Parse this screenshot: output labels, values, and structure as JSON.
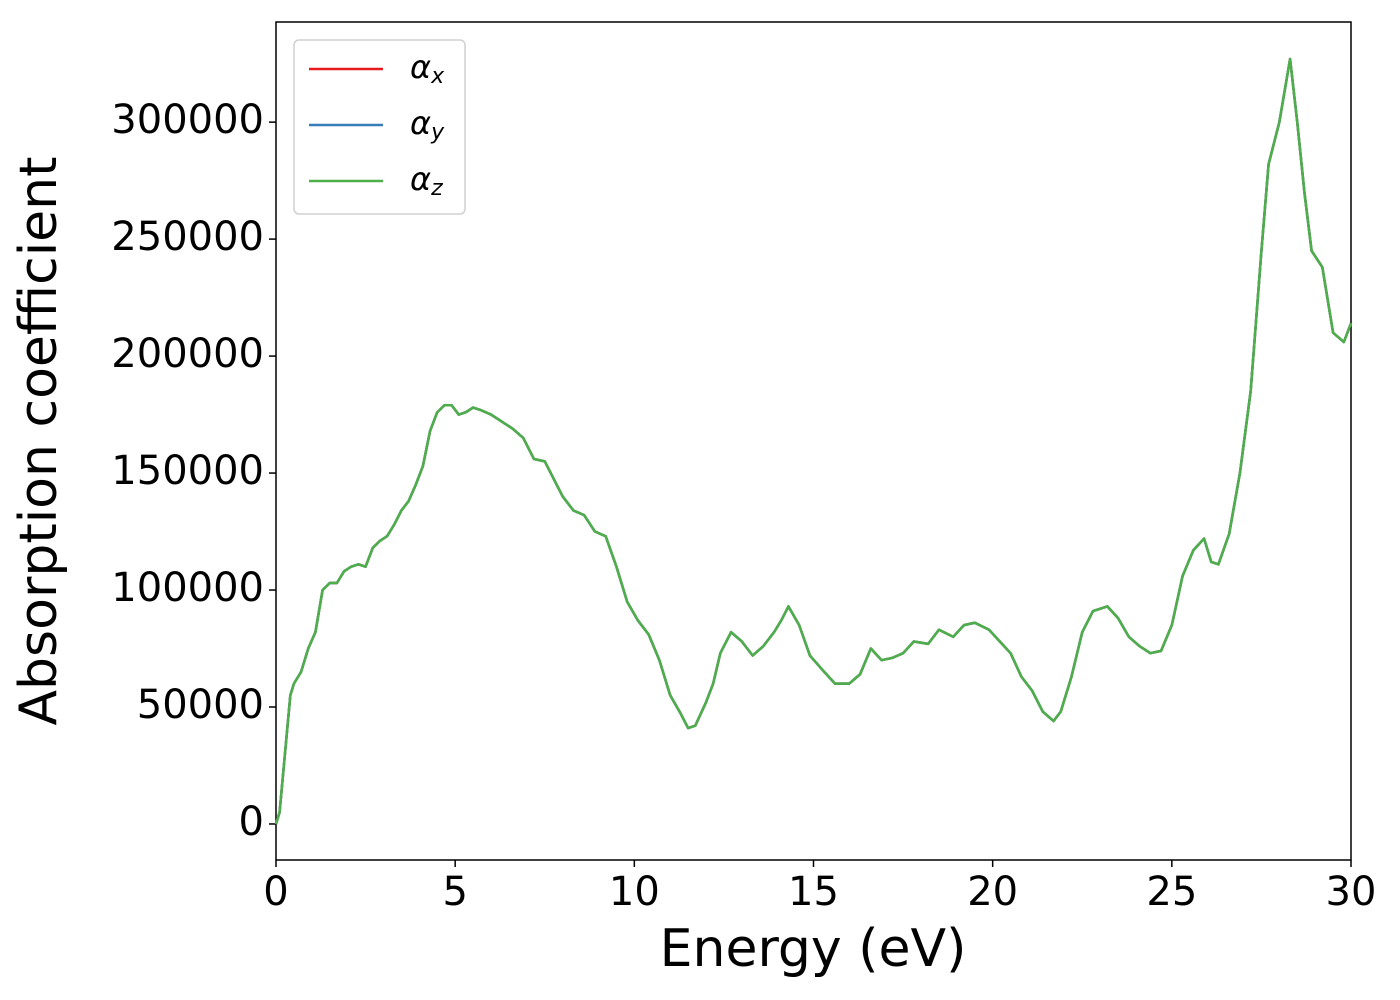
{
  "chart_data": {
    "type": "line",
    "xlabel": "Energy (eV)",
    "ylabel": "Absorption coefficient",
    "x": [
      0,
      0.1,
      0.25,
      0.4,
      0.5,
      0.7,
      0.9,
      1.1,
      1.3,
      1.5,
      1.7,
      1.9,
      2.1,
      2.3,
      2.5,
      2.7,
      2.9,
      3.1,
      3.3,
      3.5,
      3.7,
      3.9,
      4.1,
      4.3,
      4.5,
      4.7,
      4.9,
      5.1,
      5.3,
      5.5,
      5.7,
      6.0,
      6.3,
      6.6,
      6.9,
      7.2,
      7.5,
      7.8,
      8.0,
      8.3,
      8.6,
      8.9,
      9.2,
      9.5,
      9.8,
      10.1,
      10.4,
      10.7,
      11.0,
      11.3,
      11.5,
      11.7,
      12.0,
      12.2,
      12.4,
      12.7,
      13.0,
      13.3,
      13.6,
      13.9,
      14.1,
      14.3,
      14.6,
      14.9,
      15.3,
      15.6,
      16.0,
      16.3,
      16.6,
      16.9,
      17.2,
      17.5,
      17.8,
      18.2,
      18.5,
      18.9,
      19.2,
      19.5,
      19.9,
      20.2,
      20.5,
      20.8,
      21.1,
      21.4,
      21.7,
      21.9,
      22.2,
      22.5,
      22.8,
      23.2,
      23.5,
      23.8,
      24.1,
      24.4,
      24.7,
      25.0,
      25.3,
      25.6,
      25.9,
      26.1,
      26.3,
      26.6,
      26.9,
      27.2,
      27.5,
      27.7,
      28.0,
      28.3,
      28.5,
      28.7,
      28.9,
      29.2,
      29.5,
      29.8,
      30.0
    ],
    "series": [
      {
        "name": "αx",
        "color": "#e41a1c",
        "values": [
          0,
          5000,
          30000,
          55000,
          60000,
          65000,
          75000,
          82000,
          100000,
          103000,
          103000,
          108000,
          110000,
          111000,
          110000,
          118000,
          121000,
          123000,
          128000,
          134000,
          138000,
          145000,
          153000,
          168000,
          176000,
          179000,
          179000,
          175000,
          176000,
          178000,
          177000,
          175000,
          172000,
          169000,
          165000,
          156000,
          155000,
          146000,
          140000,
          134000,
          132000,
          125000,
          123000,
          110000,
          95000,
          87000,
          81000,
          70000,
          55000,
          47000,
          41000,
          42000,
          52000,
          60000,
          73000,
          82000,
          78000,
          72000,
          76000,
          82000,
          87000,
          93000,
          85000,
          72000,
          65000,
          60000,
          60000,
          64000,
          75000,
          70000,
          71000,
          73000,
          78000,
          77000,
          83000,
          80000,
          85000,
          86000,
          83000,
          78000,
          73000,
          63000,
          57000,
          48000,
          44000,
          48000,
          63000,
          82000,
          91000,
          93000,
          88000,
          80000,
          76000,
          73000,
          74000,
          85000,
          106000,
          117000,
          122000,
          112000,
          111000,
          124000,
          150000,
          185000,
          245000,
          282000,
          300000,
          327000,
          300000,
          270000,
          245000,
          238000,
          210000,
          206000,
          214000
        ]
      },
      {
        "name": "αy",
        "color": "#377eb8",
        "values": [
          0,
          5000,
          30000,
          55000,
          60000,
          65000,
          75000,
          82000,
          100000,
          103000,
          103000,
          108000,
          110000,
          111000,
          110000,
          118000,
          121000,
          123000,
          128000,
          134000,
          138000,
          145000,
          153000,
          168000,
          176000,
          179000,
          179000,
          175000,
          176000,
          178000,
          177000,
          175000,
          172000,
          169000,
          165000,
          156000,
          155000,
          146000,
          140000,
          134000,
          132000,
          125000,
          123000,
          110000,
          95000,
          87000,
          81000,
          70000,
          55000,
          47000,
          41000,
          42000,
          52000,
          60000,
          73000,
          82000,
          78000,
          72000,
          76000,
          82000,
          87000,
          93000,
          85000,
          72000,
          65000,
          60000,
          60000,
          64000,
          75000,
          70000,
          71000,
          73000,
          78000,
          77000,
          83000,
          80000,
          85000,
          86000,
          83000,
          78000,
          73000,
          63000,
          57000,
          48000,
          44000,
          48000,
          63000,
          82000,
          91000,
          93000,
          88000,
          80000,
          76000,
          73000,
          74000,
          85000,
          106000,
          117000,
          122000,
          112000,
          111000,
          124000,
          150000,
          185000,
          245000,
          282000,
          300000,
          327000,
          300000,
          270000,
          245000,
          238000,
          210000,
          206000,
          214000
        ]
      },
      {
        "name": "αz",
        "color": "#4daf4a",
        "values": [
          0,
          5000,
          30000,
          55000,
          60000,
          65000,
          75000,
          82000,
          100000,
          103000,
          103000,
          108000,
          110000,
          111000,
          110000,
          118000,
          121000,
          123000,
          128000,
          134000,
          138000,
          145000,
          153000,
          168000,
          176000,
          179000,
          179000,
          175000,
          176000,
          178000,
          177000,
          175000,
          172000,
          169000,
          165000,
          156000,
          155000,
          146000,
          140000,
          134000,
          132000,
          125000,
          123000,
          110000,
          95000,
          87000,
          81000,
          70000,
          55000,
          47000,
          41000,
          42000,
          52000,
          60000,
          73000,
          82000,
          78000,
          72000,
          76000,
          82000,
          87000,
          93000,
          85000,
          72000,
          65000,
          60000,
          60000,
          64000,
          75000,
          70000,
          71000,
          73000,
          78000,
          77000,
          83000,
          80000,
          85000,
          86000,
          83000,
          78000,
          73000,
          63000,
          57000,
          48000,
          44000,
          48000,
          63000,
          82000,
          91000,
          93000,
          88000,
          80000,
          76000,
          73000,
          74000,
          85000,
          106000,
          117000,
          122000,
          112000,
          111000,
          124000,
          150000,
          185000,
          245000,
          282000,
          300000,
          327000,
          300000,
          270000,
          245000,
          238000,
          210000,
          206000,
          214000
        ]
      }
    ],
    "xlim": [
      0,
      30
    ],
    "xticks": [
      0,
      5,
      10,
      15,
      20,
      25,
      30
    ],
    "ylim": [
      -15400,
      342800
    ],
    "yticks": [
      0,
      50000,
      100000,
      150000,
      200000,
      250000,
      300000
    ],
    "grid": false,
    "legend": "upper left"
  }
}
